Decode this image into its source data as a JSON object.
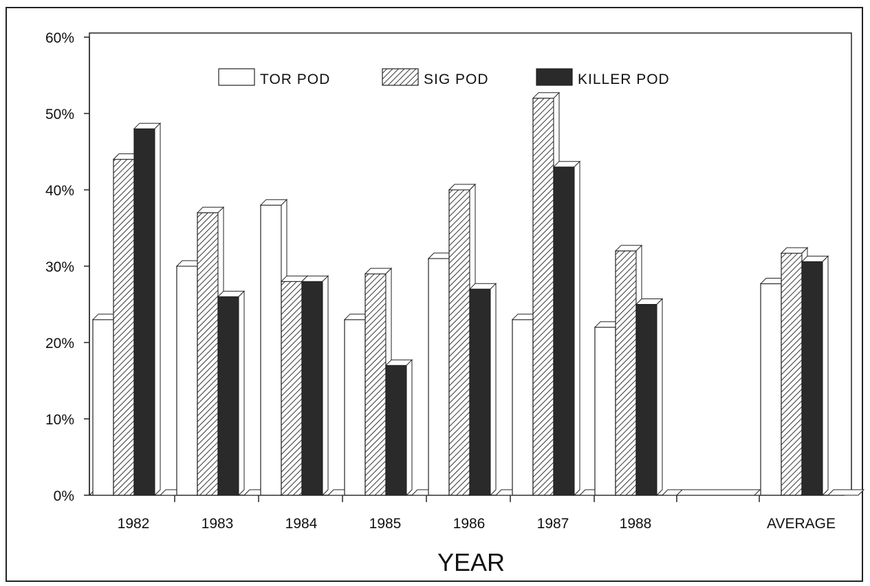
{
  "chart_data": {
    "type": "bar",
    "xlabel": "YEAR",
    "ylabel": "",
    "ylim": [
      0,
      60
    ],
    "yticks": [
      "0%",
      "10%",
      "20%",
      "30%",
      "40%",
      "50%",
      "60%"
    ],
    "ytick_values": [
      0,
      10,
      20,
      30,
      40,
      50,
      60
    ],
    "categories": [
      "1982",
      "1983",
      "1984",
      "1985",
      "1986",
      "1987",
      "1988",
      "",
      "AVERAGE"
    ],
    "series": [
      {
        "name": "TOR POD",
        "values": [
          23,
          30,
          38,
          23,
          31,
          23,
          22,
          null,
          27.7
        ]
      },
      {
        "name": "SIG POD",
        "values": [
          44,
          37,
          28,
          29,
          40,
          52,
          32,
          null,
          31.7
        ]
      },
      {
        "name": "KILLER POD",
        "values": [
          48,
          26,
          28,
          17,
          27,
          43,
          25,
          null,
          30.6
        ]
      }
    ],
    "legend_position": "top",
    "grid": false,
    "colors": {
      "tor": "#ffffff",
      "sig": "#bbbbbb",
      "killer": "#2a2a2a",
      "ink": "#111111"
    }
  }
}
